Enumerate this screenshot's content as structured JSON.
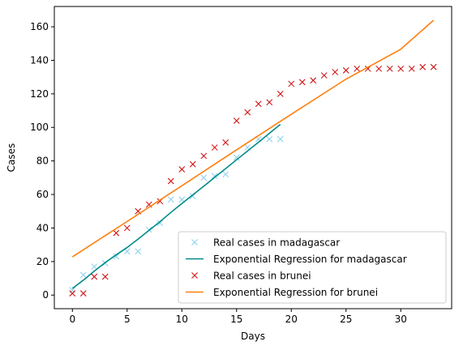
{
  "chart_data": {
    "type": "scatter",
    "title": "",
    "xlabel": "Days",
    "ylabel": "Cases",
    "xlim": [
      -1.65,
      34.65
    ],
    "ylim": [
      -8.1,
      172.1
    ],
    "xticks": [
      0,
      5,
      10,
      15,
      20,
      25,
      30
    ],
    "yticks": [
      0,
      20,
      40,
      60,
      80,
      100,
      120,
      140,
      160
    ],
    "grid": false,
    "legend_position": "lower-right",
    "series": [
      {
        "name": "Real cases in madagascar",
        "kind": "scatter",
        "marker": "x",
        "color": "#87ceeb",
        "x": [
          0,
          1,
          2,
          3,
          4,
          5,
          6,
          7,
          8,
          9,
          10,
          11,
          12,
          13,
          14,
          15,
          16,
          17,
          18,
          19
        ],
        "y": [
          3,
          12,
          17,
          19,
          23,
          26,
          26,
          39,
          43,
          57,
          57,
          59,
          70,
          71,
          72,
          82,
          88,
          93,
          93,
          93
        ]
      },
      {
        "name": "Exponential Regression for madagascar",
        "kind": "line",
        "color": "#008b8b",
        "x": [
          0,
          1,
          2,
          3,
          4,
          5,
          6,
          7,
          8,
          9,
          10,
          11,
          12,
          13,
          14,
          15,
          16,
          17,
          18,
          19
        ],
        "y": [
          4.0,
          8.9,
          14.3,
          19.4,
          24.0,
          28.4,
          33.4,
          38.6,
          43.8,
          49.3,
          54.6,
          59.8,
          64.9,
          70.2,
          75.4,
          80.7,
          85.9,
          91.1,
          96.5,
          101.8
        ]
      },
      {
        "name": "Real cases in brunei",
        "kind": "scatter",
        "marker": "x",
        "color": "#cc0000",
        "x": [
          0,
          1,
          2,
          3,
          4,
          5,
          6,
          7,
          8,
          9,
          10,
          11,
          12,
          13,
          14,
          15,
          16,
          17,
          18,
          19,
          20,
          21,
          22,
          23,
          24,
          25,
          26,
          27,
          28,
          29,
          30,
          31,
          32,
          33
        ],
        "y": [
          1,
          1,
          11,
          11,
          37,
          40,
          50,
          54,
          56,
          68,
          75,
          78,
          83,
          88,
          91,
          104,
          109,
          114,
          115,
          120,
          126,
          127,
          128,
          131,
          133,
          134,
          135,
          135,
          135,
          135,
          135,
          135,
          136,
          136
        ]
      },
      {
        "name": "Exponential Regression for brunei",
        "kind": "line",
        "color": "#ff7f0e",
        "x": [
          0,
          5,
          10,
          15,
          20,
          25,
          30,
          33
        ],
        "y": [
          22.8,
          43.9,
          65.2,
          86.6,
          107.8,
          128.8,
          146.6,
          163.9
        ]
      }
    ]
  }
}
